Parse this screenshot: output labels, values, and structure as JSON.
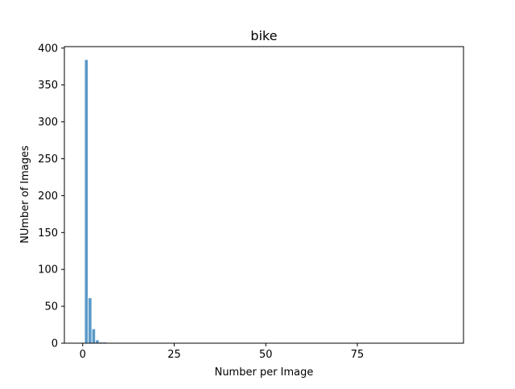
{
  "chart_data": {
    "type": "bar",
    "title": "bike",
    "xlabel": "Number per Image",
    "ylabel": "NUmber of Images",
    "xlim": [
      -5,
      104
    ],
    "ylim": [
      0,
      402
    ],
    "xticks": [
      0,
      25,
      50,
      75
    ],
    "yticks": [
      0,
      50,
      100,
      150,
      200,
      250,
      300,
      350,
      400
    ],
    "grid": false,
    "bar_color": "#5b9ac8",
    "series": [
      {
        "x": [
          1,
          2,
          3,
          4,
          5,
          6
        ],
        "values": [
          384,
          61,
          19,
          4,
          1,
          1
        ]
      }
    ]
  }
}
